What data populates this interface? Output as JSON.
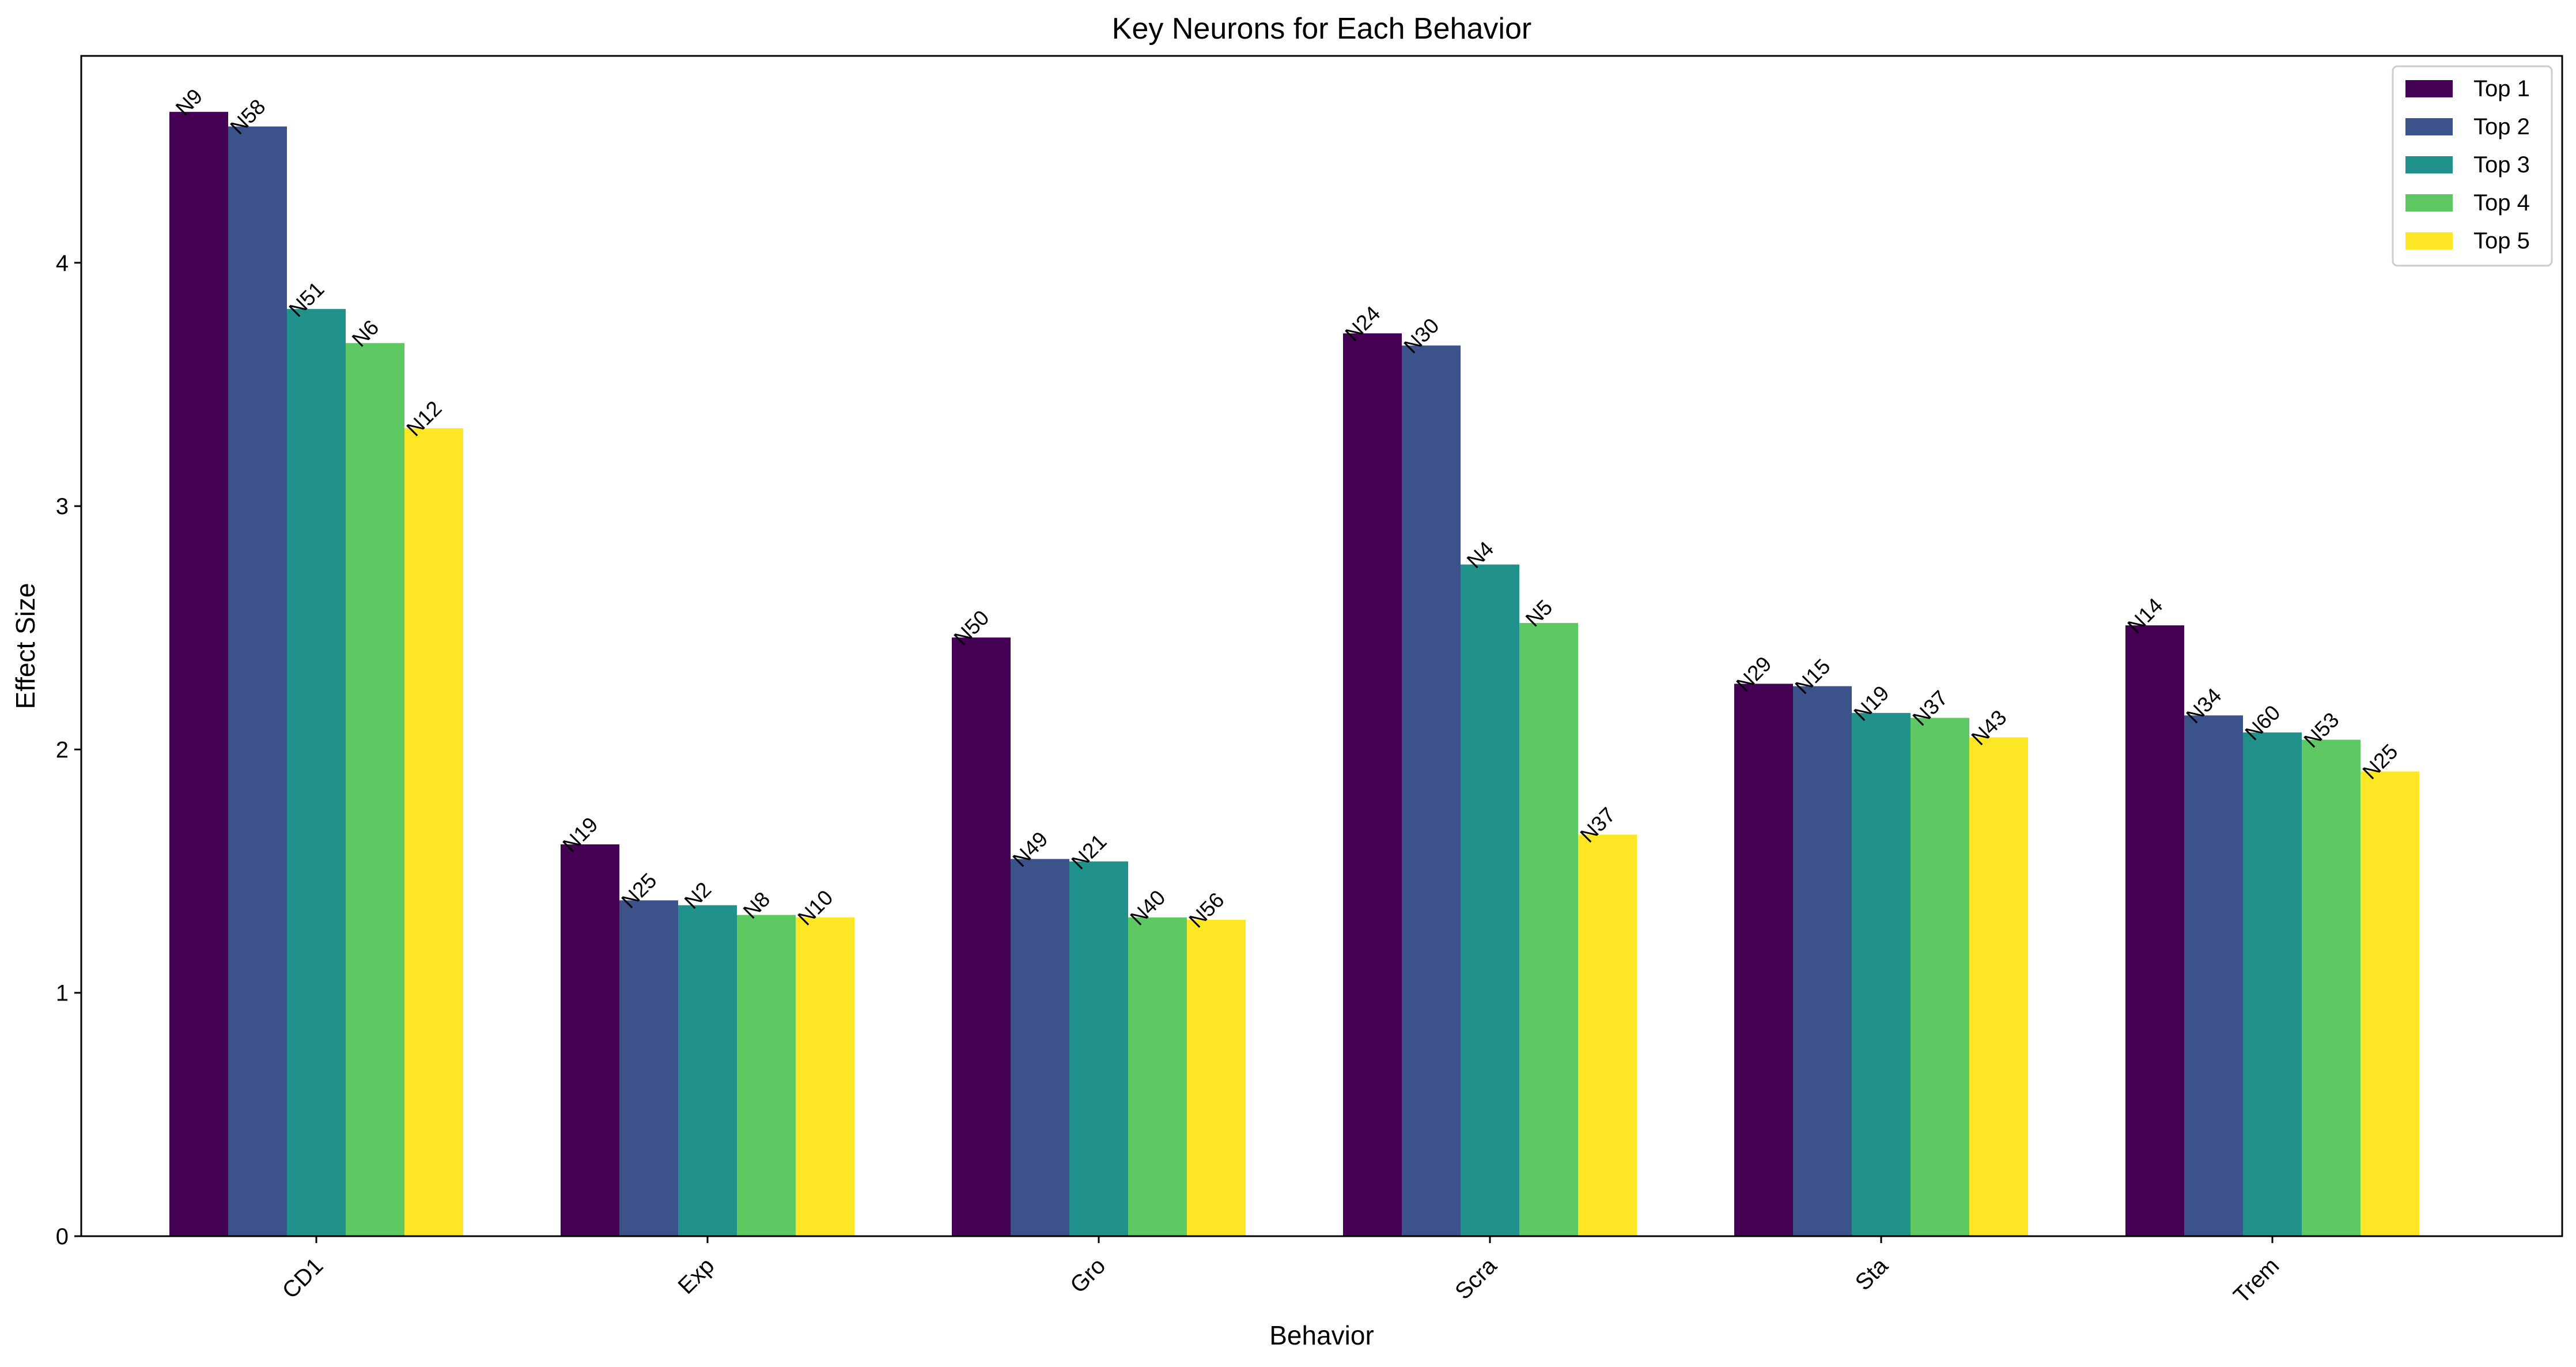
{
  "chart_data": {
    "type": "bar",
    "title": "Key Neurons for Each Behavior",
    "xlabel": "Behavior",
    "ylabel": "Effect Size",
    "ylim": [
      0,
      4.85
    ],
    "yticks": [
      0,
      1,
      2,
      3,
      4
    ],
    "categories": [
      "CD1",
      "Exp",
      "Gro",
      "Scra",
      "Sta",
      "Trem"
    ],
    "legend_position": "top-right",
    "grid": false,
    "series": [
      {
        "name": "Top 1",
        "color": "#440154",
        "values": [
          4.62,
          1.61,
          2.46,
          3.71,
          2.27,
          2.51
        ],
        "labels": [
          "N9",
          "N19",
          "N50",
          "N24",
          "N29",
          "N14"
        ]
      },
      {
        "name": "Top 2",
        "color": "#3b528b",
        "values": [
          4.56,
          1.38,
          1.55,
          3.66,
          2.26,
          2.14
        ],
        "labels": [
          "N58",
          "N25",
          "N49",
          "N30",
          "N15",
          "N34"
        ]
      },
      {
        "name": "Top 3",
        "color": "#21918c",
        "values": [
          3.81,
          1.36,
          1.54,
          2.76,
          2.15,
          2.07
        ],
        "labels": [
          "N51",
          "N2",
          "N21",
          "N4",
          "N19",
          "N60"
        ]
      },
      {
        "name": "Top 4",
        "color": "#5ec962",
        "values": [
          3.67,
          1.32,
          1.31,
          2.52,
          2.13,
          2.04
        ],
        "labels": [
          "N6",
          "N8",
          "N40",
          "N5",
          "N37",
          "N53"
        ]
      },
      {
        "name": "Top 5",
        "color": "#fde725",
        "values": [
          3.32,
          1.31,
          1.3,
          1.65,
          2.05,
          1.91
        ],
        "labels": [
          "N12",
          "N10",
          "N56",
          "N37",
          "N43",
          "N25"
        ]
      }
    ]
  }
}
